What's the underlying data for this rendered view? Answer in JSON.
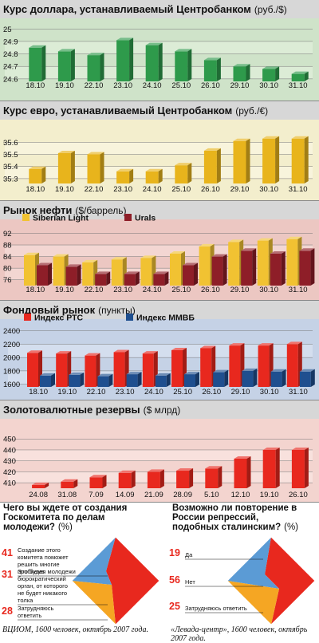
{
  "colors": {
    "panel1_bg": "#cfe3c9",
    "panel1_band": "#dcecd6",
    "panel2_bg": "#f3eecd",
    "panel2_band": "#f8f4dc",
    "panel3_bg": "#ecc7c2",
    "panel3_band": "#f3d6d2",
    "panel4_bg": "#c5d2e6",
    "panel4_band": "#d4deee",
    "panel5_bg": "#f3d4cf",
    "panel5_band": "#f8e1dd",
    "header_bg": "#d7d7d7"
  },
  "chart_data": [
    {
      "type": "bar",
      "title": "Курс доллара, устанавливаемый Центробанком",
      "unit": "(руб./$)",
      "categories": [
        "18.10",
        "19.10",
        "22.10",
        "23.10",
        "24.10",
        "25.10",
        "26.10",
        "29.10",
        "30.10",
        "31.10"
      ],
      "series": [
        {
          "values": [
            24.85,
            24.82,
            24.79,
            24.91,
            24.87,
            24.82,
            24.75,
            24.7,
            24.68,
            24.64
          ],
          "color": "#2e9a4b"
        }
      ],
      "yticks": [
        24.6,
        24.7,
        24.8,
        24.9,
        25.0
      ],
      "ylim": [
        24.58,
        25.04
      ]
    },
    {
      "type": "bar",
      "title": "Курс евро, устанавливаемый Центробанком",
      "unit": "(руб./€)",
      "categories": [
        "18.10",
        "19.10",
        "22.10",
        "23.10",
        "24.10",
        "25.10",
        "26.10",
        "29.10",
        "30.10",
        "31.10"
      ],
      "series": [
        {
          "values": [
            35.38,
            35.51,
            35.5,
            35.36,
            35.36,
            35.41,
            35.53,
            35.61,
            35.63,
            35.63
          ],
          "color": "#e8b41c"
        }
      ],
      "yticks": [
        35.3,
        35.4,
        35.5,
        35.6
      ],
      "ylim": [
        35.26,
        35.72
      ]
    },
    {
      "type": "bar",
      "title": "Рынок нефти",
      "unit": "($/баррель)",
      "categories": [
        "18.10",
        "19.10",
        "22.10",
        "23.10",
        "24.10",
        "25.10",
        "26.10",
        "29.10",
        "30.10",
        "31.10"
      ],
      "series": [
        {
          "name": "Siberian Light",
          "values": [
            84.5,
            84.0,
            82.0,
            83.0,
            83.5,
            85.0,
            87.5,
            89.0,
            89.5,
            90.0
          ],
          "color": "#f1c232"
        },
        {
          "name": "Urals",
          "values": [
            81.0,
            80.5,
            78.0,
            78.0,
            78.0,
            81.0,
            84.0,
            86.0,
            85.0,
            86.0
          ],
          "color": "#8e1e28"
        }
      ],
      "yticks": [
        76,
        80,
        84,
        88,
        92
      ],
      "ylim": [
        74,
        93.5
      ]
    },
    {
      "type": "bar",
      "title": "Фондовый рынок",
      "unit": "(пункты)",
      "categories": [
        "18.10",
        "19.10",
        "22.10",
        "23.10",
        "24.10",
        "25.10",
        "26.10",
        "29.10",
        "30.10",
        "31.10"
      ],
      "series": [
        {
          "name": "Индекс РТС",
          "values": [
            2070,
            2060,
            2030,
            2080,
            2060,
            2110,
            2140,
            2180,
            2180,
            2200
          ],
          "color": "#e8281e"
        },
        {
          "name": "Индекс ММВБ",
          "values": [
            1730,
            1740,
            1720,
            1750,
            1730,
            1750,
            1780,
            1800,
            1790,
            1790
          ],
          "color": "#1f4f8f"
        }
      ],
      "yticks": [
        1600,
        1800,
        2000,
        2200,
        2400
      ],
      "ylim": [
        1560,
        2420
      ]
    },
    {
      "type": "bar",
      "title": "Золотовалютные резервы",
      "unit": "($ млрд)",
      "categories": [
        "24.08",
        "31.08",
        "7.09",
        "14.09",
        "21.09",
        "28.09",
        "5.10",
        "12.10",
        "19.10",
        "26.10"
      ],
      "series": [
        {
          "values": [
            408,
            411,
            415,
            419,
            420,
            421,
            423,
            432,
            440,
            440
          ],
          "color": "#e8281e"
        }
      ],
      "yticks": [
        410,
        420,
        430,
        440,
        450
      ],
      "ylim": [
        405,
        456
      ]
    }
  ],
  "polls": [
    {
      "question": "Чего вы ждете от создания Госкомитета по делам молодежи?",
      "unit": "(%)",
      "answers": [
        {
          "value": "41",
          "label": "Создание этого комитета поможет решить многие проблемы молодежи",
          "color": "#e8281e"
        },
        {
          "value": "31",
          "label": "Это будет бюрократический орган, от которого не будет никакого толка",
          "color": "#5b9bd5"
        },
        {
          "value": "28",
          "label": "Затрудняюсь ответить",
          "color": "#f5a623"
        }
      ],
      "source": "ВЦИОМ, 1600 человек, октябрь 2007 года."
    },
    {
      "question": "Возможно ли повторение в России репрессий, подобных сталинским?",
      "unit": "(%)",
      "answers": [
        {
          "value": "19",
          "label": "Да",
          "color": "#5b9bd5"
        },
        {
          "value": "56",
          "label": "Нет",
          "color": "#e8281e"
        },
        {
          "value": "25",
          "label": "Затрудняюсь ответить",
          "color": "#f5a623"
        }
      ],
      "source": "«Левада-центр», 1600 человек, октябрь 2007 года."
    }
  ]
}
